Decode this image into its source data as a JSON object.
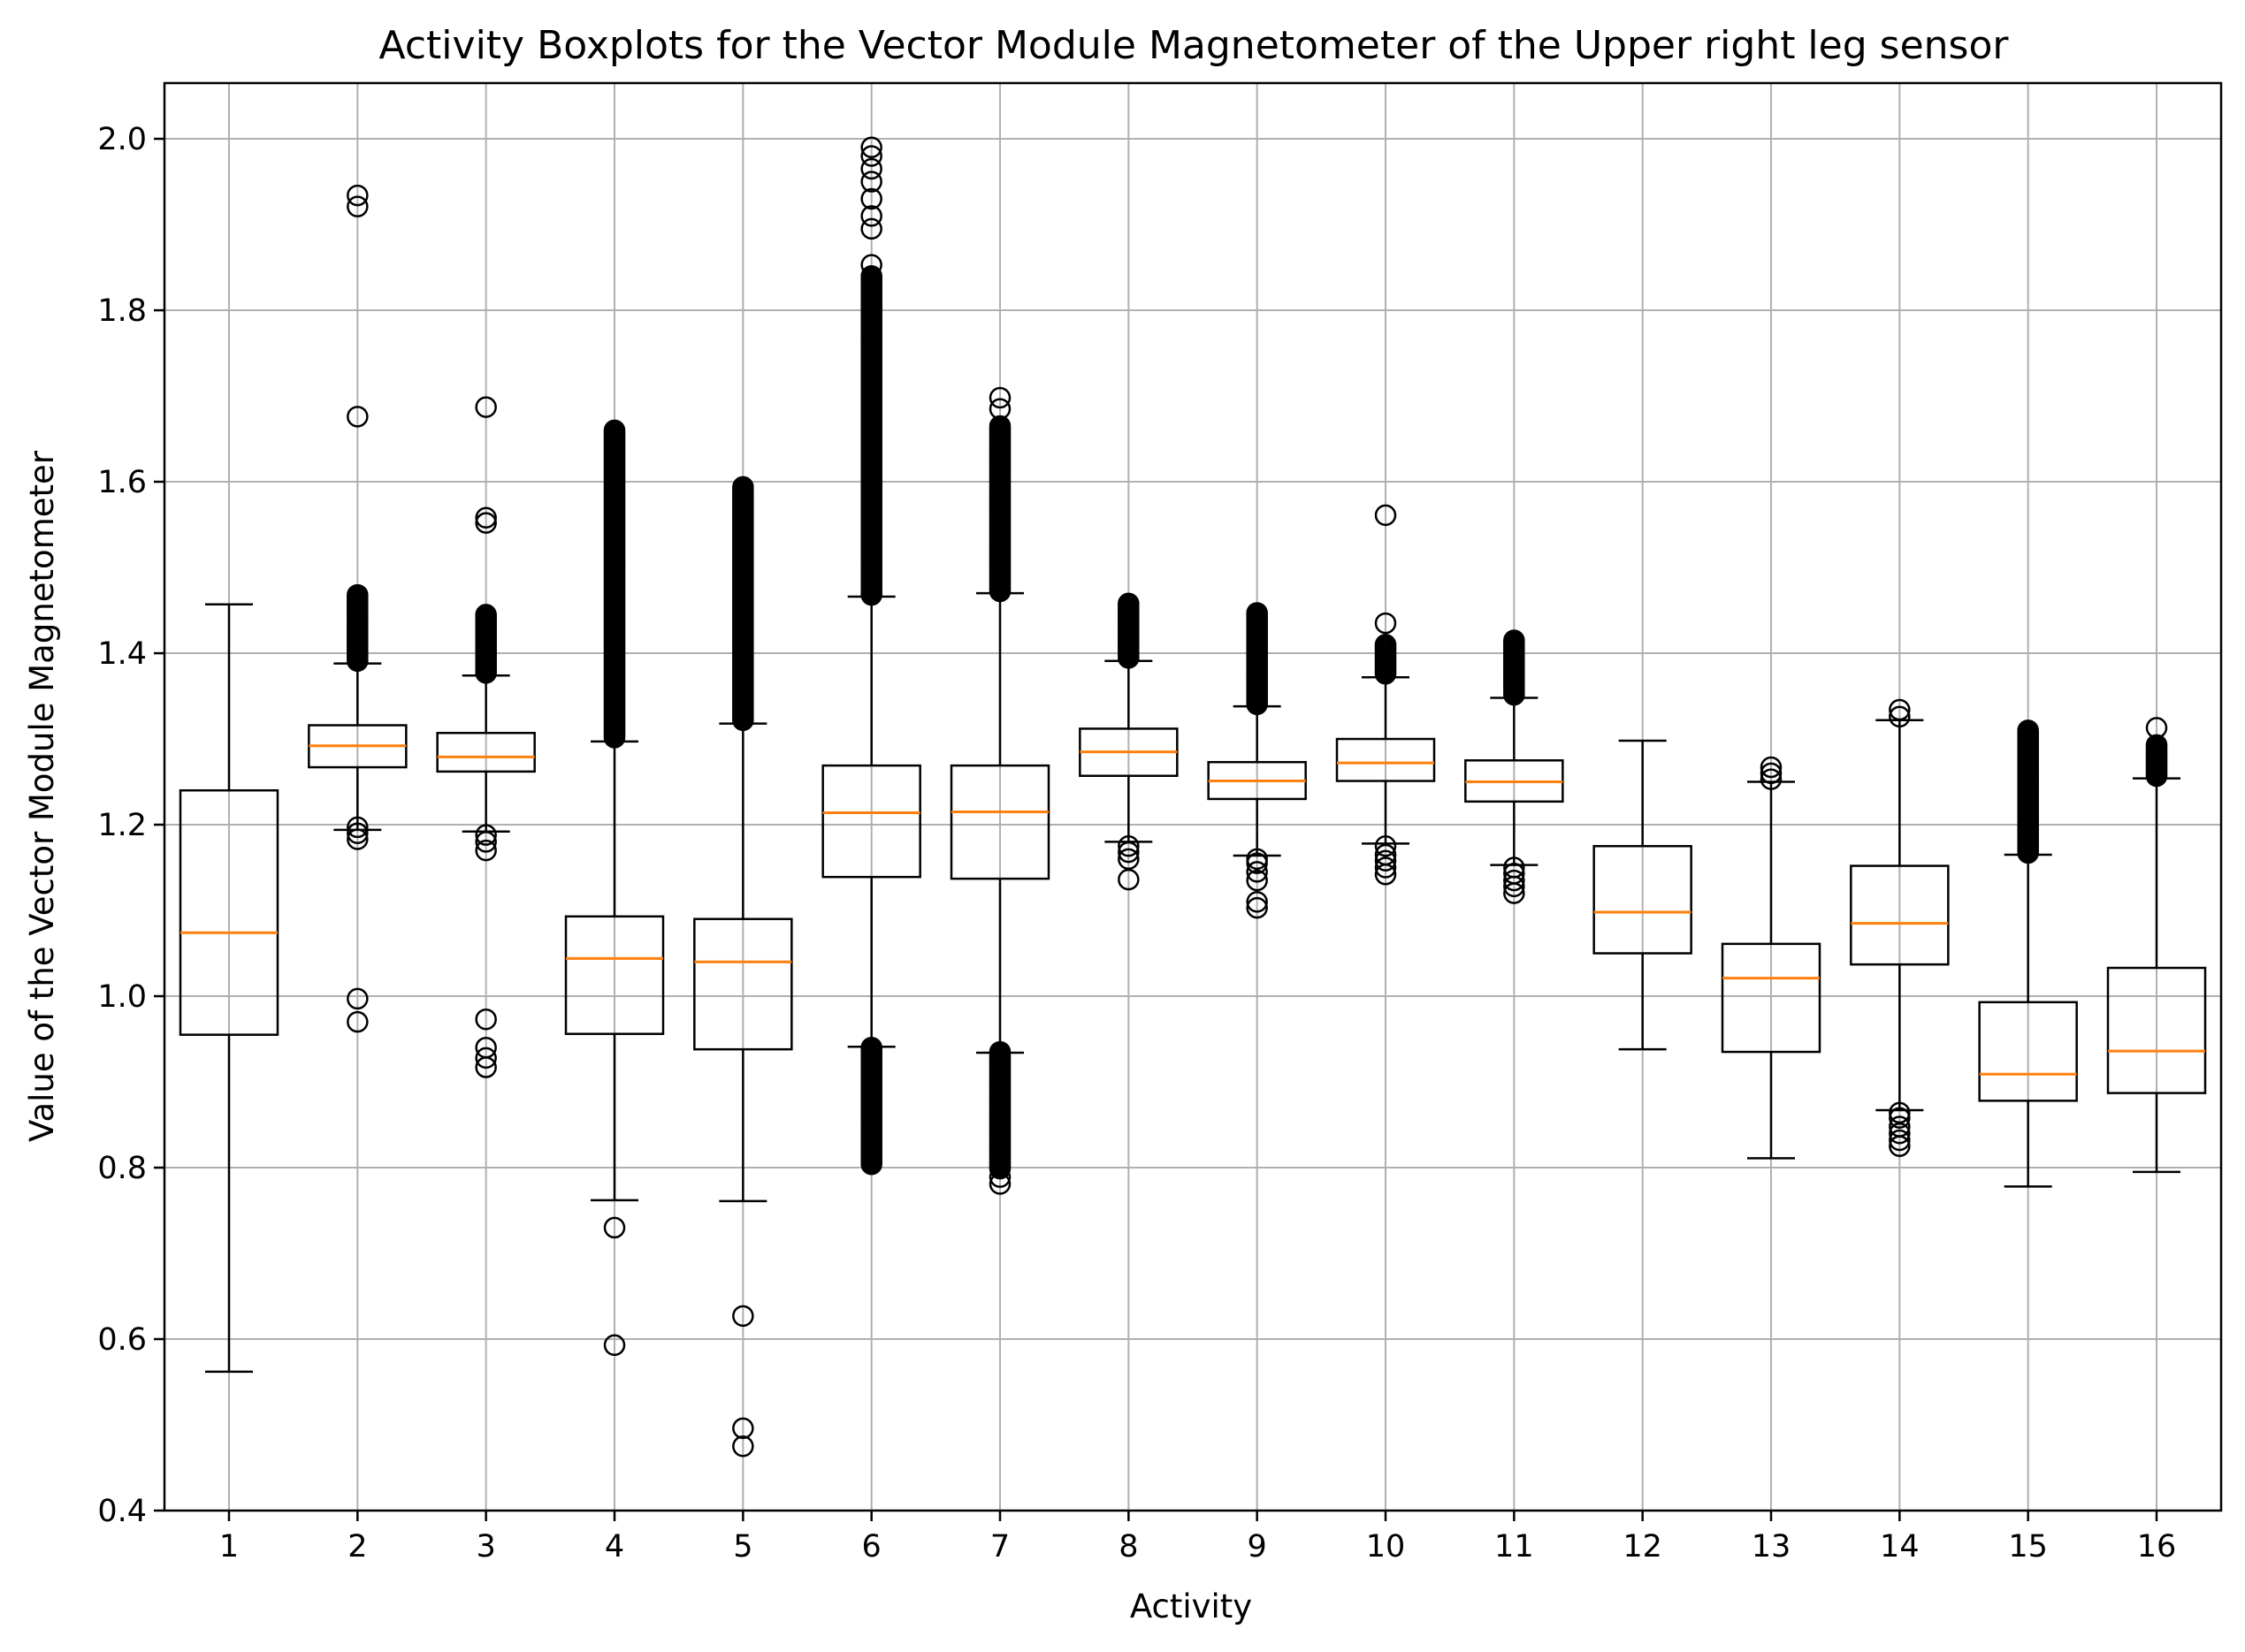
{
  "chart_data": {
    "type": "boxplot",
    "title": "Activity Boxplots for the Vector Module Magnetometer of the Upper right leg sensor",
    "xlabel": "Activity",
    "ylabel": "Value of the Vector Module Magnetometer",
    "ylim": [
      0.4,
      2.065
    ],
    "yticks": [
      "0.4",
      "0.6",
      "0.8",
      "1.0",
      "1.2",
      "1.4",
      "1.6",
      "1.8",
      "2.0"
    ],
    "grid": true,
    "colors": {
      "box": "#000000",
      "median": "#ff7f0e",
      "grid": "#b0b0b0"
    },
    "boxes": [
      {
        "label": "1",
        "whislo": 0.562,
        "q1": 0.955,
        "med": 1.074,
        "q3": 1.24,
        "whishi": 1.457,
        "fliers_lo": [],
        "fliers_hi": [],
        "dense_lo": null,
        "dense_hi": null
      },
      {
        "label": "2",
        "whislo": 1.194,
        "q1": 1.267,
        "med": 1.292,
        "q3": 1.316,
        "whishi": 1.388,
        "fliers_lo": [
          0.97,
          0.997,
          1.183,
          1.19,
          1.197
        ],
        "fliers_hi": [
          1.676,
          1.921,
          1.934
        ],
        "dense_lo": null,
        "dense_hi": [
          1.39,
          1.468
        ]
      },
      {
        "label": "3",
        "whislo": 1.192,
        "q1": 1.262,
        "med": 1.279,
        "q3": 1.307,
        "whishi": 1.374,
        "fliers_lo": [
          0.917,
          0.928,
          0.94,
          0.973,
          1.17,
          1.18,
          1.188
        ],
        "fliers_hi": [
          1.552,
          1.558,
          1.687
        ],
        "dense_lo": null,
        "dense_hi": [
          1.376,
          1.445
        ]
      },
      {
        "label": "4",
        "whislo": 0.762,
        "q1": 0.956,
        "med": 1.044,
        "q3": 1.093,
        "whishi": 1.297,
        "fliers_lo": [
          0.593,
          0.73
        ],
        "fliers_hi": [],
        "dense_lo": null,
        "dense_hi": [
          1.3,
          1.66
        ]
      },
      {
        "label": "5",
        "whislo": 0.761,
        "q1": 0.938,
        "med": 1.04,
        "q3": 1.09,
        "whishi": 1.318,
        "fliers_lo": [
          0.475,
          0.496,
          0.627
        ],
        "fliers_hi": [],
        "dense_lo": null,
        "dense_hi": [
          1.32,
          1.594
        ]
      },
      {
        "label": "6",
        "whislo": 0.941,
        "q1": 1.139,
        "med": 1.214,
        "q3": 1.269,
        "whishi": 1.466,
        "fliers_lo": [],
        "fliers_hi": [
          1.853,
          1.895,
          1.91,
          1.93,
          1.95,
          1.965,
          1.98,
          1.99
        ],
        "dense_lo": [
          0.803,
          0.94
        ],
        "dense_hi": [
          1.468,
          1.84
        ]
      },
      {
        "label": "7",
        "whislo": 0.934,
        "q1": 1.137,
        "med": 1.215,
        "q3": 1.269,
        "whishi": 1.47,
        "fliers_lo": [
          0.781,
          0.789
        ],
        "fliers_hi": [
          1.685,
          1.698
        ],
        "dense_lo": [
          0.797,
          0.935
        ],
        "dense_hi": [
          1.472,
          1.665
        ]
      },
      {
        "label": "8",
        "whislo": 1.18,
        "q1": 1.257,
        "med": 1.285,
        "q3": 1.312,
        "whishi": 1.391,
        "fliers_lo": [
          1.136,
          1.16,
          1.168,
          1.175
        ],
        "fliers_hi": [],
        "dense_lo": null,
        "dense_hi": [
          1.393,
          1.458
        ]
      },
      {
        "label": "9",
        "whislo": 1.164,
        "q1": 1.23,
        "med": 1.251,
        "q3": 1.273,
        "whishi": 1.338,
        "fliers_lo": [
          1.103,
          1.11,
          1.135,
          1.145,
          1.155,
          1.16
        ],
        "fliers_hi": [],
        "dense_lo": null,
        "dense_hi": [
          1.34,
          1.447
        ]
      },
      {
        "label": "10",
        "whislo": 1.178,
        "q1": 1.251,
        "med": 1.272,
        "q3": 1.3,
        "whishi": 1.372,
        "fliers_lo": [
          1.142,
          1.15,
          1.158,
          1.165,
          1.175
        ],
        "fliers_hi": [
          1.435,
          1.561
        ],
        "dense_lo": null,
        "dense_hi": [
          1.374,
          1.41
        ]
      },
      {
        "label": "11",
        "whislo": 1.153,
        "q1": 1.227,
        "med": 1.25,
        "q3": 1.275,
        "whishi": 1.348,
        "fliers_lo": [
          1.12,
          1.128,
          1.135,
          1.143,
          1.15
        ],
        "fliers_hi": [],
        "dense_lo": null,
        "dense_hi": [
          1.35,
          1.415
        ]
      },
      {
        "label": "12",
        "whislo": 0.938,
        "q1": 1.05,
        "med": 1.098,
        "q3": 1.175,
        "whishi": 1.298,
        "fliers_lo": [],
        "fliers_hi": [],
        "dense_lo": null,
        "dense_hi": null
      },
      {
        "label": "13",
        "whislo": 0.811,
        "q1": 0.935,
        "med": 1.021,
        "q3": 1.061,
        "whishi": 1.25,
        "fliers_lo": [],
        "fliers_hi": [
          1.253,
          1.26,
          1.267
        ],
        "dense_lo": null,
        "dense_hi": null
      },
      {
        "label": "14",
        "whislo": 0.867,
        "q1": 1.037,
        "med": 1.085,
        "q3": 1.152,
        "whishi": 1.322,
        "fliers_lo": [
          0.825,
          0.832,
          0.84,
          0.848,
          0.858,
          0.864
        ],
        "fliers_hi": [
          1.326,
          1.334
        ],
        "dense_lo": null,
        "dense_hi": null
      },
      {
        "label": "15",
        "whislo": 0.778,
        "q1": 0.878,
        "med": 0.909,
        "q3": 0.993,
        "whishi": 1.165,
        "fliers_lo": [],
        "fliers_hi": [],
        "dense_lo": null,
        "dense_hi": [
          1.167,
          1.31
        ]
      },
      {
        "label": "16",
        "whislo": 0.795,
        "q1": 0.887,
        "med": 0.936,
        "q3": 1.033,
        "whishi": 1.254,
        "fliers_lo": [],
        "fliers_hi": [
          1.313
        ],
        "dense_lo": null,
        "dense_hi": [
          1.256,
          1.293
        ]
      }
    ]
  }
}
